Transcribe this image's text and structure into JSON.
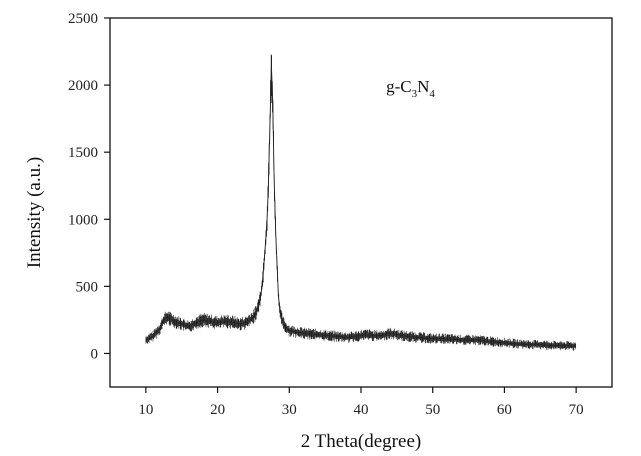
{
  "chart_data": {
    "type": "line",
    "title": "",
    "xlabel": "2 Theta(degree)",
    "ylabel": "Intensity (a.u.)",
    "xlim": [
      5,
      75
    ],
    "ylim": [
      -250,
      2500
    ],
    "xticks": [
      10,
      20,
      30,
      40,
      50,
      60,
      70
    ],
    "yticks": [
      0,
      500,
      1000,
      1500,
      2000,
      2500
    ],
    "xtick_labels": [
      "10",
      "20",
      "30",
      "40",
      "50",
      "60",
      "70"
    ],
    "ytick_labels": [
      "0",
      "500",
      "1000",
      "1500",
      "2000",
      "2500"
    ],
    "grid": false,
    "legend": "none",
    "line_color": "#222222",
    "annotation": {
      "text_parts": [
        "g-C",
        "3",
        "N",
        "4"
      ],
      "x": 43.5,
      "y": 1950
    },
    "series": [
      {
        "x": [
          10,
          11,
          12,
          12.5,
          13,
          14,
          15,
          16,
          17,
          18,
          19,
          20,
          21,
          22,
          23,
          24,
          25,
          25.5,
          26,
          26.3,
          26.6,
          26.9,
          27.1,
          27.3,
          27.5,
          27.7,
          27.9,
          28.1,
          28.3,
          28.5,
          28.8,
          29.2,
          29.6,
          30,
          31,
          32,
          33,
          34,
          35,
          36,
          37,
          38,
          39,
          40,
          41,
          42,
          43,
          44,
          45,
          46,
          47,
          48,
          49,
          50,
          51,
          52,
          53,
          54,
          55,
          56,
          57,
          58,
          59,
          60,
          61,
          62,
          63,
          64,
          65,
          66,
          67,
          68,
          69,
          70
        ],
        "y": [
          100,
          130,
          190,
          250,
          270,
          240,
          220,
          200,
          230,
          250,
          240,
          230,
          240,
          235,
          220,
          230,
          270,
          320,
          420,
          560,
          760,
          1000,
          1280,
          1700,
          2150,
          1850,
          1280,
          900,
          650,
          420,
          280,
          220,
          190,
          170,
          160,
          150,
          145,
          140,
          135,
          130,
          125,
          120,
          125,
          135,
          140,
          130,
          135,
          150,
          140,
          130,
          125,
          120,
          115,
          110,
          110,
          108,
          105,
          100,
          100,
          100,
          95,
          90,
          85,
          80,
          75,
          70,
          68,
          65,
          65,
          62,
          60,
          58,
          57,
          55
        ]
      }
    ]
  }
}
